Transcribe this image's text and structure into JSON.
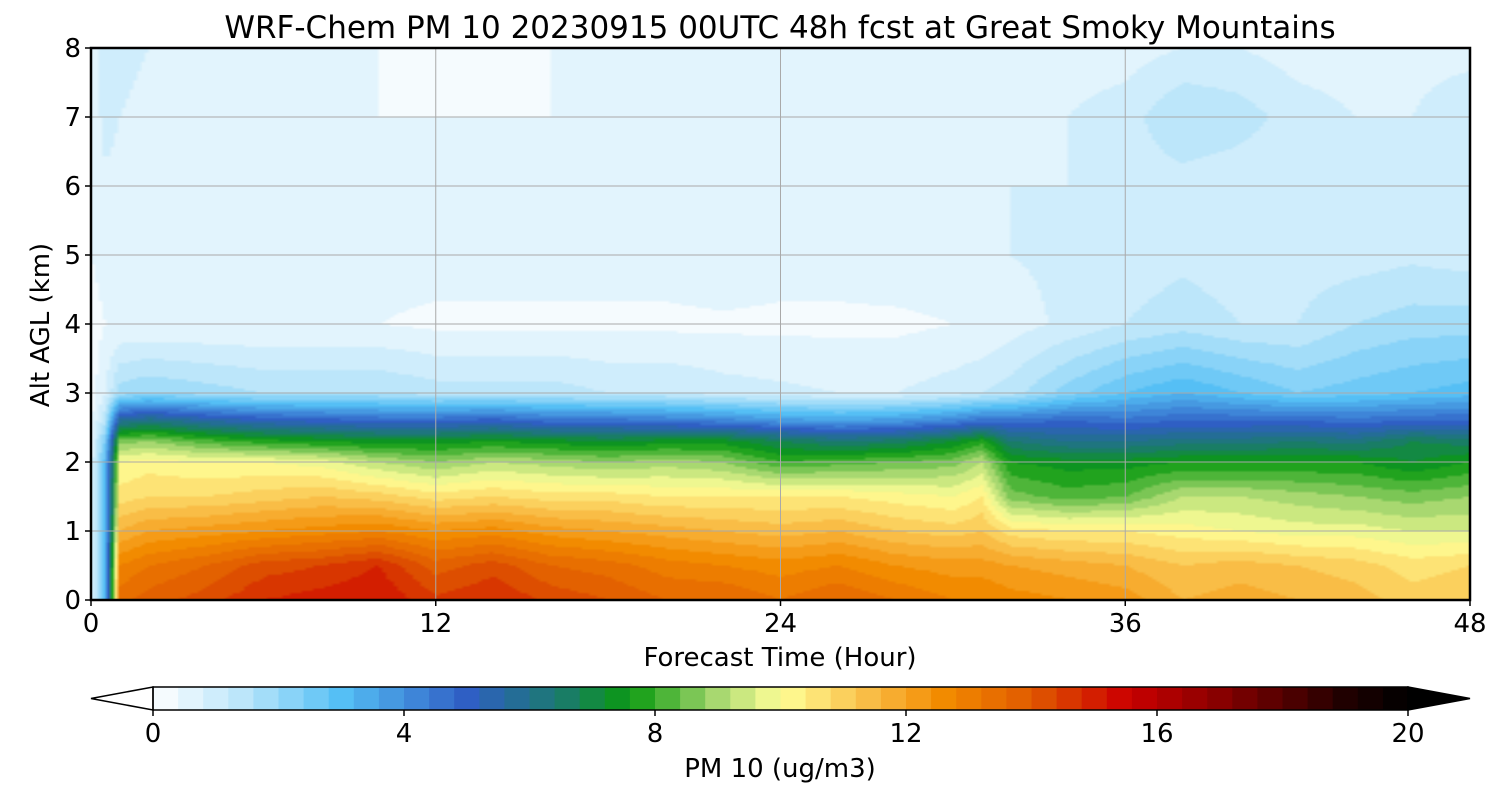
{
  "chart_data": {
    "type": "heatmap",
    "title": "WRF-Chem PM 10  20230915 00UTC 48h fcst at Great Smoky Mountains",
    "xlabel": "Forecast Time (Hour)",
    "ylabel": "Alt AGL (km)",
    "xlim": [
      0,
      48
    ],
    "ylim": [
      0,
      8
    ],
    "xticks": [
      0,
      12,
      24,
      36,
      48
    ],
    "yticks": [
      0,
      1,
      2,
      3,
      4,
      5,
      6,
      7,
      8
    ],
    "grid": true,
    "colorbar": {
      "label": "PM 10  (ug/m3)",
      "min": 0,
      "max": 20,
      "ticks": [
        0,
        4,
        8,
        12,
        16,
        20
      ],
      "extend": "both",
      "stops": [
        {
          "v": 0,
          "c": "#ffffff"
        },
        {
          "v": 1.5,
          "c": "#b7e4fa"
        },
        {
          "v": 3,
          "c": "#55bff5"
        },
        {
          "v": 5,
          "c": "#2f5fc4"
        },
        {
          "v": 6.5,
          "c": "#1b7a6e"
        },
        {
          "v": 7.6,
          "c": "#0a9a10"
        },
        {
          "v": 9,
          "c": "#a8d870"
        },
        {
          "v": 10,
          "c": "#ffff98"
        },
        {
          "v": 11.5,
          "c": "#f9b840"
        },
        {
          "v": 12.6,
          "c": "#f28b00"
        },
        {
          "v": 14,
          "c": "#e05a00"
        },
        {
          "v": 15.5,
          "c": "#cc0000"
        },
        {
          "v": 17,
          "c": "#880000"
        },
        {
          "v": 19,
          "c": "#200000"
        },
        {
          "v": 20,
          "c": "#000000"
        }
      ]
    },
    "field": {
      "x": [
        0,
        0.5,
        1,
        2,
        4,
        6,
        8,
        10,
        12,
        14,
        16,
        18,
        20,
        22,
        24,
        26,
        28,
        30,
        31,
        32,
        34,
        36,
        38,
        40,
        42,
        44,
        46,
        48
      ],
      "y": [
        0,
        0.5,
        1,
        1.5,
        2,
        2.3,
        2.6,
        3,
        4,
        5,
        6,
        7,
        8
      ],
      "values": [
        [
          0.5,
          3,
          13.5,
          13.8,
          14.2,
          14.8,
          15.0,
          15.2,
          14.5,
          14.8,
          14.3,
          14.0,
          13.6,
          13.6,
          13.2,
          13.6,
          13.2,
          12.8,
          12.8,
          12.6,
          12.4,
          12.2,
          11.6,
          11.8,
          11.6,
          11.4,
          11.0,
          11.2
        ],
        [
          0.5,
          3,
          12.8,
          13.2,
          13.6,
          14.2,
          14.4,
          14.8,
          13.8,
          14.2,
          13.6,
          13.4,
          13.0,
          12.8,
          12.6,
          12.8,
          12.4,
          12.2,
          12.2,
          12.0,
          11.8,
          11.6,
          11.2,
          11.4,
          11.2,
          11.0,
          10.6,
          10.8
        ],
        [
          0.5,
          3,
          11.6,
          12.0,
          12.2,
          12.4,
          12.6,
          12.8,
          12.4,
          12.6,
          12.2,
          12.0,
          11.8,
          11.6,
          11.4,
          11.6,
          11.2,
          11.0,
          11.2,
          10.6,
          10.4,
          10.4,
          10.2,
          10.0,
          9.8,
          9.8,
          9.6,
          9.6
        ],
        [
          0.5,
          3,
          10.6,
          10.8,
          10.8,
          11.0,
          11.2,
          11.0,
          10.6,
          10.8,
          10.6,
          10.6,
          10.4,
          10.4,
          10.4,
          10.4,
          10.2,
          10.0,
          10.4,
          8.6,
          8.2,
          8.4,
          9.2,
          9.2,
          9.0,
          8.8,
          8.6,
          8.8
        ],
        [
          0.5,
          3,
          10.0,
          10.2,
          10.0,
          10.0,
          9.8,
          9.2,
          8.8,
          9.2,
          9.0,
          8.8,
          9.0,
          8.8,
          8.0,
          8.2,
          8.4,
          8.6,
          9.2,
          7.6,
          7.4,
          7.4,
          7.6,
          7.6,
          7.6,
          7.6,
          7.2,
          7.6
        ],
        [
          0.4,
          2.5,
          8.6,
          8.8,
          8.2,
          7.8,
          7.6,
          7.4,
          7.4,
          7.6,
          7.4,
          7.2,
          7.4,
          7.4,
          6.8,
          6.4,
          6.6,
          7.2,
          7.8,
          6.4,
          6.0,
          6.0,
          6.2,
          6.2,
          6.4,
          6.2,
          6.8,
          6.6
        ],
        [
          0.3,
          1.5,
          5.8,
          6.2,
          5.6,
          5.2,
          5.0,
          4.8,
          4.8,
          5.0,
          4.6,
          4.6,
          4.4,
          4.2,
          3.8,
          3.6,
          3.8,
          4.2,
          4.6,
          4.6,
          4.8,
          4.6,
          4.8,
          4.8,
          4.8,
          4.6,
          4.8,
          4.8
        ],
        [
          0.2,
          0.8,
          1.8,
          2.0,
          1.8,
          1.6,
          1.6,
          1.6,
          1.4,
          1.4,
          1.4,
          1.2,
          1.2,
          1.0,
          0.9,
          0.8,
          0.8,
          1.0,
          1.2,
          1.4,
          2.2,
          2.8,
          3.2,
          2.8,
          2.4,
          2.6,
          2.8,
          3.0
        ],
        [
          0.2,
          0.4,
          0.4,
          0.4,
          0.4,
          0.4,
          0.4,
          0.4,
          0.3,
          0.3,
          0.3,
          0.3,
          0.3,
          0.3,
          0.3,
          0.3,
          0.3,
          0.4,
          0.4,
          0.6,
          0.9,
          1.2,
          1.4,
          1.2,
          1.2,
          1.6,
          1.8,
          1.8
        ],
        [
          0.4,
          0.6,
          0.6,
          0.6,
          0.6,
          0.6,
          0.6,
          0.6,
          0.6,
          0.6,
          0.6,
          0.6,
          0.6,
          0.8,
          0.6,
          0.6,
          0.7,
          0.7,
          0.7,
          0.8,
          0.9,
          1.0,
          1.1,
          1.0,
          1.0,
          1.0,
          1.1,
          1.0
        ],
        [
          0.4,
          0.7,
          0.6,
          0.6,
          0.6,
          0.5,
          0.5,
          0.5,
          0.5,
          0.5,
          0.5,
          0.5,
          0.6,
          0.6,
          0.7,
          0.8,
          0.8,
          0.8,
          0.8,
          0.8,
          0.8,
          1.0,
          1.0,
          0.9,
          0.8,
          0.8,
          0.8,
          0.8
        ],
        [
          0.4,
          1.0,
          0.8,
          0.6,
          0.5,
          0.4,
          0.4,
          0.4,
          0.4,
          0.4,
          0.4,
          0.4,
          0.4,
          0.4,
          0.5,
          0.6,
          0.6,
          0.6,
          0.7,
          0.7,
          0.8,
          1.0,
          1.6,
          1.4,
          1.0,
          0.8,
          0.8,
          1.0
        ],
        [
          0.4,
          1.0,
          1.0,
          0.8,
          0.6,
          0.4,
          0.4,
          0.4,
          0.3,
          0.3,
          0.4,
          0.4,
          0.6,
          0.6,
          0.5,
          0.5,
          0.5,
          0.5,
          0.5,
          0.5,
          0.6,
          0.6,
          0.8,
          0.8,
          0.6,
          0.6,
          0.7,
          0.7
        ]
      ]
    }
  }
}
